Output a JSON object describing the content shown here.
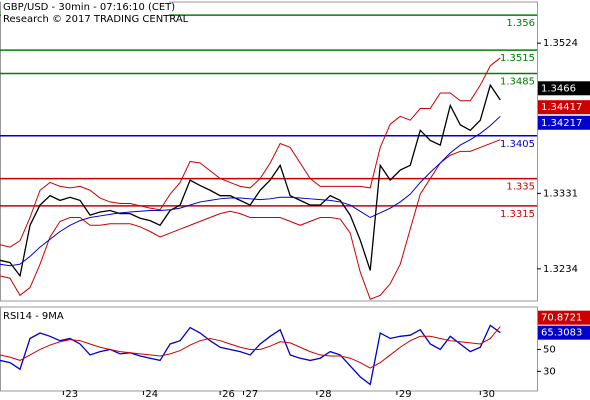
{
  "chart_data": [
    {
      "type": "line",
      "title": "GBP/USD - 30min - 07:16:10 (CET)",
      "subtitle": "Research © 2017 TRADING CENTRAL",
      "x": [
        0,
        3,
        6,
        9,
        12,
        15,
        18,
        21,
        24,
        27,
        30,
        33,
        36,
        39,
        42,
        45,
        48,
        51,
        54,
        57,
        60,
        63,
        66,
        69,
        72,
        75,
        78,
        81,
        84,
        87,
        90,
        93,
        96,
        99,
        102,
        105,
        108,
        111,
        114,
        117,
        120,
        123,
        126,
        129,
        132,
        135,
        138,
        141,
        144,
        147,
        150
      ],
      "xlim": [
        0,
        161
      ],
      "ylim": [
        1.3194,
        1.3573
      ],
      "yticks": [
        1.3234,
        1.3331,
        1.3524
      ],
      "series": [
        {
          "color": "#000000",
          "values": [
            1.3245,
            1.3242,
            1.3225,
            1.329,
            1.3316,
            1.3328,
            1.3322,
            1.3326,
            1.3322,
            1.3303,
            1.3307,
            1.3309,
            1.3305,
            1.3305,
            1.3299,
            1.3296,
            1.329,
            1.3309,
            1.3316,
            1.3348,
            1.3341,
            1.3335,
            1.3328,
            1.3328,
            1.3322,
            1.3316,
            1.3335,
            1.3348,
            1.3367,
            1.3328,
            1.3322,
            1.3316,
            1.3316,
            1.3328,
            1.3322,
            1.3303,
            1.3271,
            1.3232,
            1.3367,
            1.3348,
            1.3361,
            1.3367,
            1.3412,
            1.3399,
            1.3393,
            1.3444,
            1.3419,
            1.3412,
            1.3425,
            1.347,
            1.3451
          ]
        },
        {
          "color": "#cc0000",
          "values": [
            1.3265,
            1.3262,
            1.327,
            1.33,
            1.3335,
            1.3345,
            1.334,
            1.3338,
            1.334,
            1.3335,
            1.3325,
            1.332,
            1.3318,
            1.3318,
            1.3315,
            1.3312,
            1.331,
            1.333,
            1.3345,
            1.3372,
            1.337,
            1.336,
            1.335,
            1.3345,
            1.334,
            1.3338,
            1.335,
            1.337,
            1.3395,
            1.339,
            1.337,
            1.335,
            1.334,
            1.334,
            1.334,
            1.334,
            1.334,
            1.3338,
            1.339,
            1.342,
            1.343,
            1.3425,
            1.344,
            1.344,
            1.346,
            1.346,
            1.345,
            1.345,
            1.347,
            1.3495,
            1.3505
          ]
        },
        {
          "color": "#cc0000",
          "values": [
            1.3225,
            1.3222,
            1.32,
            1.321,
            1.324,
            1.3275,
            1.3295,
            1.33,
            1.33,
            1.329,
            1.329,
            1.3292,
            1.3292,
            1.3292,
            1.3288,
            1.3282,
            1.3275,
            1.328,
            1.3285,
            1.329,
            1.3295,
            1.33,
            1.3305,
            1.3308,
            1.3305,
            1.33,
            1.33,
            1.33,
            1.33,
            1.3295,
            1.329,
            1.3295,
            1.33,
            1.33,
            1.3298,
            1.328,
            1.323,
            1.3195,
            1.32,
            1.3215,
            1.324,
            1.3285,
            1.333,
            1.335,
            1.337,
            1.338,
            1.3385,
            1.3385,
            1.339,
            1.3395,
            1.34
          ]
        },
        {
          "color": "#0000cc",
          "values": [
            1.324,
            1.3238,
            1.324,
            1.325,
            1.3262,
            1.3272,
            1.3282,
            1.329,
            1.3296,
            1.33,
            1.3302,
            1.3304,
            1.3306,
            1.3307,
            1.3308,
            1.3309,
            1.3309,
            1.331,
            1.3312,
            1.3316,
            1.332,
            1.3322,
            1.3324,
            1.3325,
            1.3325,
            1.3324,
            1.3323,
            1.3324,
            1.3326,
            1.3326,
            1.3325,
            1.3324,
            1.3323,
            1.3322,
            1.332,
            1.3316,
            1.3308,
            1.33,
            1.3306,
            1.3312,
            1.332,
            1.333,
            1.3345,
            1.3358,
            1.337,
            1.3383,
            1.3393,
            1.34,
            1.3408,
            1.3418,
            1.343
          ]
        }
      ],
      "levels": [
        {
          "value": 1.356,
          "color": "#008000"
        },
        {
          "value": 1.3515,
          "color": "#008000"
        },
        {
          "value": 1.3485,
          "color": "#008000"
        },
        {
          "value": 1.3405,
          "color": "#0000cc"
        },
        {
          "value": 1.335,
          "color": "#cc0000"
        },
        {
          "value": 1.3315,
          "color": "#cc0000"
        }
      ],
      "price_tags": [
        {
          "value": 1.3466,
          "color": "#000000"
        },
        {
          "value": 1.34417,
          "color": "#cc0000"
        },
        {
          "value": 1.34217,
          "color": "#0000cc"
        }
      ]
    },
    {
      "type": "line",
      "title": "RSI14 - 9MA",
      "x": [
        0,
        3,
        6,
        9,
        12,
        15,
        18,
        21,
        24,
        27,
        30,
        33,
        36,
        39,
        42,
        45,
        48,
        51,
        54,
        57,
        60,
        63,
        66,
        69,
        72,
        75,
        78,
        81,
        84,
        87,
        90,
        93,
        96,
        99,
        102,
        105,
        108,
        111,
        114,
        117,
        120,
        123,
        126,
        129,
        132,
        135,
        138,
        141,
        144,
        147,
        150
      ],
      "xlim": [
        0,
        161
      ],
      "xticks": [
        {
          "value": 19,
          "label": "23"
        },
        {
          "value": 43,
          "label": "24"
        },
        {
          "value": 66,
          "label": "26"
        },
        {
          "value": 73,
          "label": "27"
        },
        {
          "value": 95,
          "label": "28"
        },
        {
          "value": 119,
          "label": "29"
        },
        {
          "value": 144,
          "label": "30"
        }
      ],
      "ylim": [
        13,
        86
      ],
      "yticks": [
        30,
        50
      ],
      "series": [
        {
          "color": "#0000cc",
          "values": [
            40,
            38,
            32,
            60,
            65,
            62,
            58,
            60,
            55,
            45,
            48,
            50,
            46,
            47,
            44,
            42,
            40,
            55,
            58,
            70,
            65,
            58,
            52,
            50,
            48,
            45,
            55,
            62,
            68,
            45,
            42,
            40,
            42,
            48,
            45,
            35,
            25,
            18,
            65,
            60,
            62,
            63,
            68,
            55,
            50,
            62,
            55,
            48,
            52,
            72,
            65.3083
          ]
        },
        {
          "color": "#cc0000",
          "values": [
            45,
            43,
            40,
            45,
            50,
            54,
            57,
            59,
            58,
            55,
            52,
            50,
            48,
            47,
            46,
            45,
            44,
            46,
            49,
            54,
            58,
            60,
            58,
            55,
            52,
            50,
            50,
            53,
            57,
            56,
            52,
            48,
            45,
            44,
            44,
            42,
            38,
            33,
            38,
            45,
            52,
            58,
            62,
            62,
            60,
            58,
            57,
            56,
            55,
            60,
            70.8721
          ]
        }
      ]
    }
  ]
}
